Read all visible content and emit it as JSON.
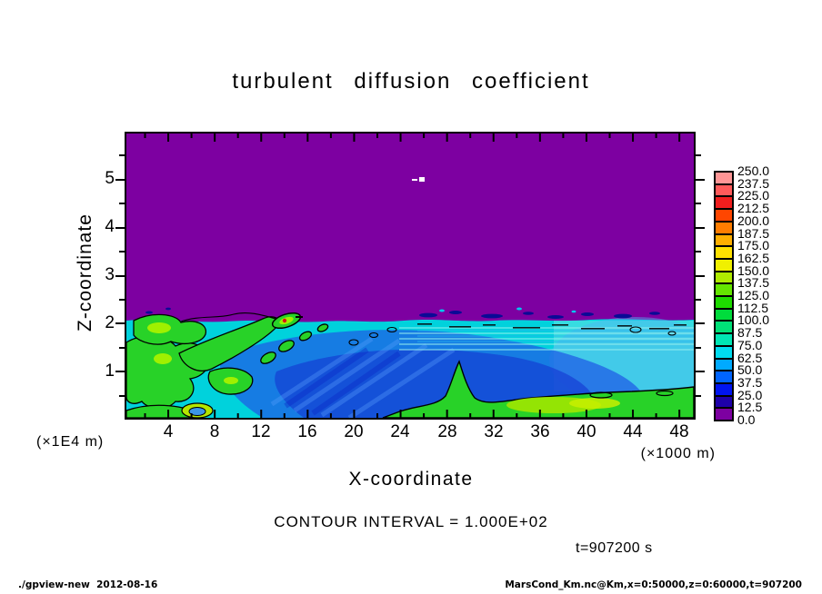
{
  "title": "turbulent diffusion coefficient",
  "plot": {
    "x_axis": {
      "label": "X-coordinate",
      "unit_note": "(×1000 m)",
      "tick_labels": [
        "4",
        "8",
        "12",
        "16",
        "20",
        "24",
        "28",
        "32",
        "36",
        "40",
        "44",
        "48"
      ]
    },
    "y_axis": {
      "label": "Z-coordinate",
      "unit_note": "(×1E4 m)",
      "tick_labels": [
        "5",
        "4",
        "3",
        "2",
        "1"
      ]
    }
  },
  "colorbar": {
    "labels": [
      "250.0",
      "237.5",
      "225.0",
      "212.5",
      "200.0",
      "187.5",
      "175.0",
      "162.5",
      "150.0",
      "137.5",
      "125.0",
      "112.5",
      "100.0",
      "87.5",
      "75.0",
      "62.5",
      "50.0",
      "37.5",
      "25.0",
      "12.5",
      "0.0"
    ],
    "colors_top_to_bottom": [
      "#FF9696",
      "#FF5A5A",
      "#F01E1E",
      "#FF4600",
      "#FF7D00",
      "#FFAF00",
      "#FFE100",
      "#F0F000",
      "#AFEB00",
      "#64E600",
      "#1EDC00",
      "#00DC3C",
      "#00E178",
      "#00E6B4",
      "#00DCF0",
      "#00AAFF",
      "#0064FF",
      "#0014F0",
      "#1E00AA",
      "#7D00A1"
    ]
  },
  "annotations": {
    "contour_interval": "CONTOUR INTERVAL = 1.000E+02",
    "time_label": "t=907200 s"
  },
  "footer": {
    "left": "./gpview-new  2012-08-16",
    "right": "MarsCond_Km.nc@Km,x=0:50000,z=0:60000,t=907200"
  },
  "colors": {
    "field_background_purple": "#7D00A1",
    "frame": "#000000",
    "page_background": "#FFFFFF"
  },
  "chart_data": {
    "type": "heatmap",
    "title": "turbulent diffusion coefficient",
    "xlabel": "X-coordinate (×1000 m)",
    "ylabel": "Z-coordinate (×1E4 m)",
    "x_range": [
      0,
      50
    ],
    "y_range": [
      0,
      6
    ],
    "x_major_ticks": [
      4,
      8,
      12,
      16,
      20,
      24,
      28,
      32,
      36,
      40,
      44,
      48
    ],
    "y_major_ticks": [
      1,
      2,
      3,
      4,
      5
    ],
    "contour_interval": 100.0,
    "time_seconds": 907200,
    "colorbar_levels": [
      0.0,
      12.5,
      25.0,
      37.5,
      50.0,
      62.5,
      75.0,
      87.5,
      100.0,
      112.5,
      125.0,
      137.5,
      150.0,
      162.5,
      175.0,
      187.5,
      200.0,
      212.5,
      225.0,
      237.5,
      250.0
    ],
    "colorbar_colors_top_to_bottom": [
      "#FF9696",
      "#FF5A5A",
      "#F01E1E",
      "#FF4600",
      "#FF7D00",
      "#FFAF00",
      "#FFE100",
      "#F0F000",
      "#AFEB00",
      "#64E600",
      "#1EDC00",
      "#00DC3C",
      "#00E178",
      "#00E6B4",
      "#00DCF0",
      "#00AAFF",
      "#0064FF",
      "#0014F0",
      "#1E00AA",
      "#7D00A1"
    ],
    "field_description": [
      "z > ~2 (×1E4 m): uniform minimum 0-12.5 (purple quiescent region) across all x",
      "z < ~2: turbulent boundary layer with values ~25-150 and black 100-contour lines",
      "left region x<12: green patches (100-150) outlined by the 100-contour",
      "center x=12-32: blue core (25-75) with diagonal wave-like streaks",
      "bottom right x>26, z<0.6: green band (100-150) with local bright maximum near x=37",
      "narrow green plume rises to z~1.2 near x=29",
      "small embedded maximum (red, >200) in a green patch near x=14, z~2",
      "scattered dark-blue specks along the z~2 interface, mostly x=26-48",
      "tiny white speck near x=26, z~5"
    ]
  }
}
